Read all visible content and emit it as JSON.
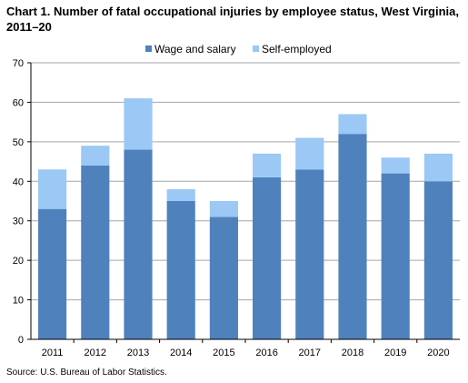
{
  "title": "Chart 1. Number of fatal occupational injuries by employee status,  West Virginia, 2011–20",
  "source": "Source: U.S. Bureau of Labor Statistics.",
  "colors": {
    "wage": "#4f81bd",
    "self": "#9bc8f5",
    "grid": "#a6a6a6",
    "axis": "#000000"
  },
  "chart_data": {
    "type": "bar",
    "stacked": true,
    "categories": [
      "2011",
      "2012",
      "2013",
      "2014",
      "2015",
      "2016",
      "2017",
      "2018",
      "2019",
      "2020"
    ],
    "series": [
      {
        "name": "Wage and salary",
        "values": [
          33,
          44,
          48,
          35,
          31,
          41,
          43,
          52,
          42,
          40
        ]
      },
      {
        "name": "Self-employed",
        "values": [
          10,
          5,
          13,
          3,
          4,
          6,
          8,
          5,
          4,
          7
        ]
      }
    ],
    "ylim": [
      0,
      70
    ],
    "yticks": [
      0,
      10,
      20,
      30,
      40,
      50,
      60,
      70
    ],
    "grid": true,
    "legend": "top"
  }
}
